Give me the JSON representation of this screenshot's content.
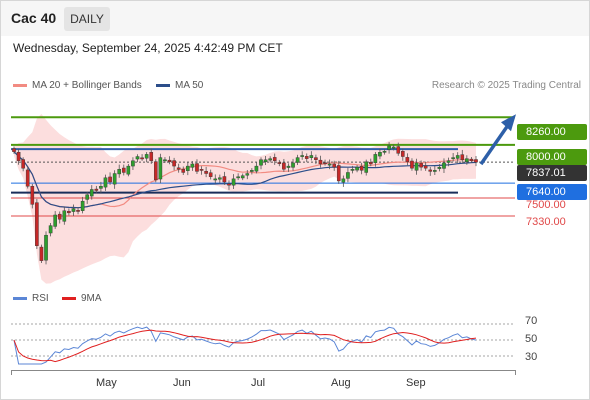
{
  "header": {
    "instrument": "Cac 40",
    "timeframe": "DAILY"
  },
  "datetime": "Wednesday, September 24, 2025 4:42:49 PM CET",
  "legend": {
    "ma20": {
      "label": "MA 20 + Bollinger Bands",
      "color": "#f28b82"
    },
    "ma50": {
      "label": "MA 50",
      "color": "#2c4e8a"
    }
  },
  "copyright": "Research © 2025 Trading Central",
  "levels": {
    "r2": {
      "value": 8260,
      "label": "8260.00",
      "color": "#4c9a0e"
    },
    "r1": {
      "value": 8000,
      "label": "8000.00",
      "color": "#4c9a0e"
    },
    "last": {
      "value": 7837.01,
      "label": "7837.01",
      "color": "#333333"
    },
    "pivot": {
      "value": 7640,
      "label": "7640.00",
      "color": "#1f6fe0"
    },
    "s1": {
      "value": 7500,
      "label": "7500.00",
      "color": "#e04848"
    },
    "s2": {
      "value": 7330,
      "label": "7330.00",
      "color": "#e04848"
    }
  },
  "months": [
    "May",
    "Jun",
    "Jul",
    "Aug",
    "Sep"
  ],
  "rsi_legend": {
    "rsi": {
      "label": "RSI",
      "color": "#5b86d6"
    },
    "ma9": {
      "label": "9MA",
      "color": "#e02020"
    }
  },
  "rsi_ticks": [
    "70",
    "50",
    "30"
  ],
  "colors": {
    "up": "#2e9e2e",
    "down": "#c62828",
    "band": "#fbd6d6",
    "accent": "#2d5fa8"
  },
  "chart_data": {
    "type": "candlestick",
    "title": "Cac 40",
    "timeframe": "DAILY",
    "price_range": [
      6700,
      8450
    ],
    "x_labels": [
      "May",
      "Jun",
      "Jul",
      "Aug",
      "Sep"
    ],
    "series": [
      {
        "name": "MA 20 + Bollinger Bands"
      },
      {
        "name": "MA 50"
      }
    ],
    "levels": [
      8260,
      8000,
      7837.01,
      7640,
      7500,
      7330
    ],
    "close": [
      7935,
      7850,
      7780,
      7610,
      7440,
      7050,
      6910,
      7150,
      7240,
      7340,
      7300,
      7380,
      7360,
      7400,
      7380,
      7470,
      7530,
      7580,
      7570,
      7610,
      7690,
      7650,
      7730,
      7770,
      7740,
      7800,
      7850,
      7890,
      7870,
      7910,
      7850,
      7670,
      7880,
      7860,
      7840,
      7800,
      7770,
      7740,
      7800,
      7820,
      7750,
      7760,
      7730,
      7700,
      7680,
      7690,
      7650,
      7620,
      7680,
      7700,
      7710,
      7730,
      7760,
      7800,
      7860,
      7860,
      7870,
      7850,
      7830,
      7770,
      7800,
      7830,
      7880,
      7900,
      7870,
      7900,
      7860,
      7820,
      7830,
      7820,
      7790,
      7660,
      7680,
      7740,
      7770,
      7790,
      7760,
      7840,
      7820,
      7910,
      7930,
      7940,
      7990,
      7980,
      7920,
      7890,
      7840,
      7780,
      7830,
      7790,
      7780,
      7750,
      7760,
      7790,
      7830,
      7850,
      7880,
      7900,
      7860,
      7870,
      7850,
      7837
    ],
    "rsi": {
      "range": [
        15,
        85
      ],
      "ticks": [
        70,
        50,
        30
      ],
      "series": [
        {
          "name": "RSI"
        },
        {
          "name": "9MA"
        }
      ]
    }
  }
}
